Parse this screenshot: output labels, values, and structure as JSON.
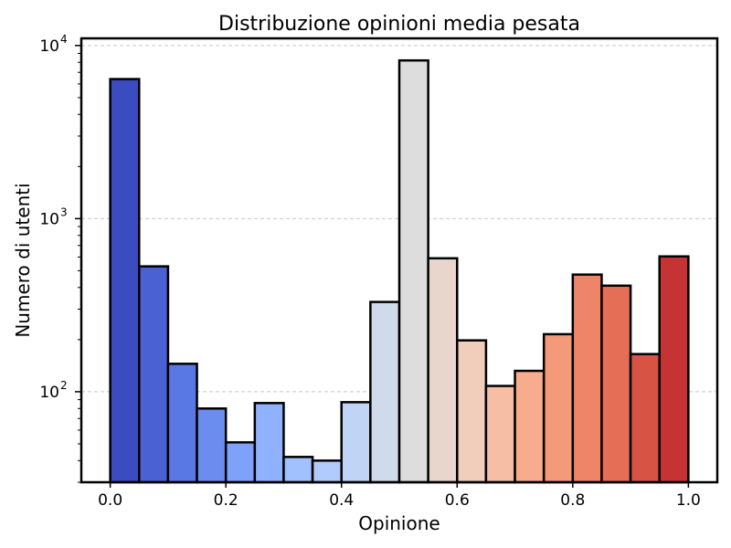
{
  "chart_data": {
    "type": "bar",
    "title": "Distribuzione opinioni media pesata",
    "xlabel": "Opinione",
    "ylabel": "Numero di utenti",
    "y_scale": "log",
    "xlim": [
      -0.05,
      1.05
    ],
    "ylim": [
      30,
      11000
    ],
    "grid": "horizontal dashed at major ticks",
    "x_ticks": [
      "0.0",
      "0.2",
      "0.4",
      "0.6",
      "0.8",
      "1.0"
    ],
    "y_ticks": [
      {
        "value": 100,
        "label_base": "10",
        "label_exp": "2"
      },
      {
        "value": 1000,
        "label_base": "10",
        "label_exp": "3"
      },
      {
        "value": 10000,
        "label_base": "10",
        "label_exp": "4"
      }
    ],
    "bins": [
      {
        "x0": 0.0,
        "x1": 0.05,
        "value": 6400,
        "color": "#3b4cc0"
      },
      {
        "x0": 0.05,
        "x1": 0.1,
        "value": 530,
        "color": "#4961d2"
      },
      {
        "x0": 0.1,
        "x1": 0.15,
        "value": 145,
        "color": "#5a78e4"
      },
      {
        "x0": 0.15,
        "x1": 0.2,
        "value": 80,
        "color": "#6b8df0"
      },
      {
        "x0": 0.2,
        "x1": 0.25,
        "value": 51,
        "color": "#7ea1f9"
      },
      {
        "x0": 0.25,
        "x1": 0.3,
        "value": 86,
        "color": "#8fb1fe"
      },
      {
        "x0": 0.3,
        "x1": 0.35,
        "value": 42,
        "color": "#a0c0fe"
      },
      {
        "x0": 0.35,
        "x1": 0.4,
        "value": 40,
        "color": "#b1cbfc"
      },
      {
        "x0": 0.4,
        "x1": 0.45,
        "value": 87,
        "color": "#c0d4f5"
      },
      {
        "x0": 0.45,
        "x1": 0.5,
        "value": 330,
        "color": "#cfdaea"
      },
      {
        "x0": 0.5,
        "x1": 0.55,
        "value": 8200,
        "color": "#dddddd"
      },
      {
        "x0": 0.55,
        "x1": 0.6,
        "value": 590,
        "color": "#e8d6cc"
      },
      {
        "x0": 0.6,
        "x1": 0.65,
        "value": 198,
        "color": "#f1cdbb"
      },
      {
        "x0": 0.65,
        "x1": 0.7,
        "value": 108,
        "color": "#f6bea4"
      },
      {
        "x0": 0.7,
        "x1": 0.75,
        "value": 132,
        "color": "#f7ac8e"
      },
      {
        "x0": 0.75,
        "x1": 0.8,
        "value": 215,
        "color": "#f59a78"
      },
      {
        "x0": 0.8,
        "x1": 0.85,
        "value": 475,
        "color": "#ee8468"
      },
      {
        "x0": 0.85,
        "x1": 0.9,
        "value": 410,
        "color": "#e46e56"
      },
      {
        "x0": 0.9,
        "x1": 0.95,
        "value": 165,
        "color": "#d75445"
      },
      {
        "x0": 0.95,
        "x1": 1.0,
        "value": 605,
        "color": "#c53334"
      }
    ]
  }
}
